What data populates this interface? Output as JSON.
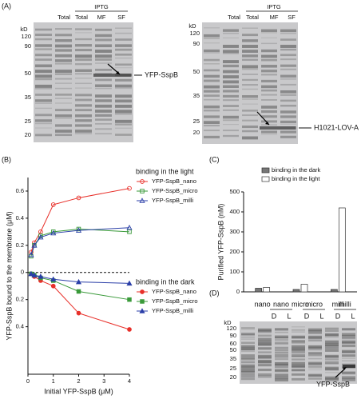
{
  "panel_a": {
    "label": "(A)",
    "gels": [
      {
        "treatment": "IPTG",
        "lanes": [
          "Total",
          "Total",
          "MF",
          "SF"
        ],
        "unit": "kD",
        "markers": [
          120,
          90,
          50,
          35,
          25,
          20
        ],
        "band_label": "YFP-SspB"
      },
      {
        "treatment": "IPTG",
        "lanes": [
          "Total",
          "Total",
          "MF",
          "SF"
        ],
        "unit": "kD",
        "markers": [
          120,
          90,
          50,
          35,
          25,
          20
        ],
        "band_label": "H1021-LOV-A"
      }
    ]
  },
  "chart_data": [
    {
      "type": "line",
      "panel": "(B)",
      "y_label": "YFP-SspB bound to the membrane (μM)",
      "x_label": "Initial YFP-SspB (μM)",
      "x": [
        0.125,
        0.25,
        0.5,
        1,
        2,
        4
      ],
      "xlim": [
        0,
        4
      ],
      "xticks": [
        0,
        1,
        2,
        3,
        4
      ],
      "ylim": [
        -0.75,
        0.7
      ],
      "yticks": [
        {
          "value": -0.4,
          "label": "0.4"
        },
        {
          "value": -0.2,
          "label": "0.2"
        },
        0,
        0.2,
        0.4,
        0.6
      ],
      "legend_titles": [
        "binding in the light",
        "binding in the dark"
      ],
      "series": [
        {
          "name": "YFP-SspB_nano",
          "color": "#e8302a",
          "marker": "circle",
          "filled": false,
          "values": [
            0.15,
            0.22,
            0.3,
            0.5,
            0.55,
            0.62
          ]
        },
        {
          "name": "YFP-SspB_micro",
          "color": "#3a9a3a",
          "marker": "square",
          "filled": false,
          "values": [
            0.12,
            0.2,
            0.27,
            0.3,
            0.32,
            0.3
          ]
        },
        {
          "name": "YFP-SspB_milli",
          "color": "#2b3fa8",
          "marker": "triangle",
          "filled": false,
          "values": [
            0.13,
            0.2,
            0.26,
            0.29,
            0.31,
            0.33
          ]
        },
        {
          "name": "YFP-SspB_nano",
          "color": "#e8302a",
          "marker": "circle",
          "filled": true,
          "values": [
            -0.01,
            -0.03,
            -0.06,
            -0.1,
            -0.3,
            -0.42
          ]
        },
        {
          "name": "YFP-SspB_micro",
          "color": "#3a9a3a",
          "marker": "square",
          "filled": true,
          "values": [
            -0.01,
            -0.02,
            -0.04,
            -0.06,
            -0.14,
            -0.2
          ]
        },
        {
          "name": "YFP-SspB_milli",
          "color": "#2b3fa8",
          "marker": "triangle",
          "filled": true,
          "values": [
            -0.01,
            -0.02,
            -0.03,
            -0.05,
            -0.07,
            -0.08
          ]
        }
      ]
    },
    {
      "type": "bar",
      "panel": "(C)",
      "y_label": "Purified YFP-SspB (nM)",
      "categories": [
        "nano",
        "micro",
        "milli"
      ],
      "ylim": [
        0,
        500
      ],
      "yticks": [
        0,
        100,
        200,
        300,
        400,
        500
      ],
      "series": [
        {
          "name": "binding in the dark",
          "color": "#777777",
          "values": [
            18,
            12,
            12
          ]
        },
        {
          "name": "binding in the light",
          "color": "#ffffff",
          "values": [
            22,
            38,
            420
          ]
        }
      ]
    }
  ],
  "panel_d": {
    "label": "(D)",
    "unit": "kD",
    "markers": [
      120,
      90,
      60,
      50,
      35,
      25,
      20
    ],
    "groups": [
      {
        "name": "nano",
        "lanes": [
          "D",
          "L"
        ]
      },
      {
        "name": "micro",
        "lanes": [
          "D",
          "L"
        ]
      },
      {
        "name": "milli",
        "lanes": [
          "D",
          "L"
        ]
      }
    ],
    "band_label": "YFP-SspB"
  }
}
